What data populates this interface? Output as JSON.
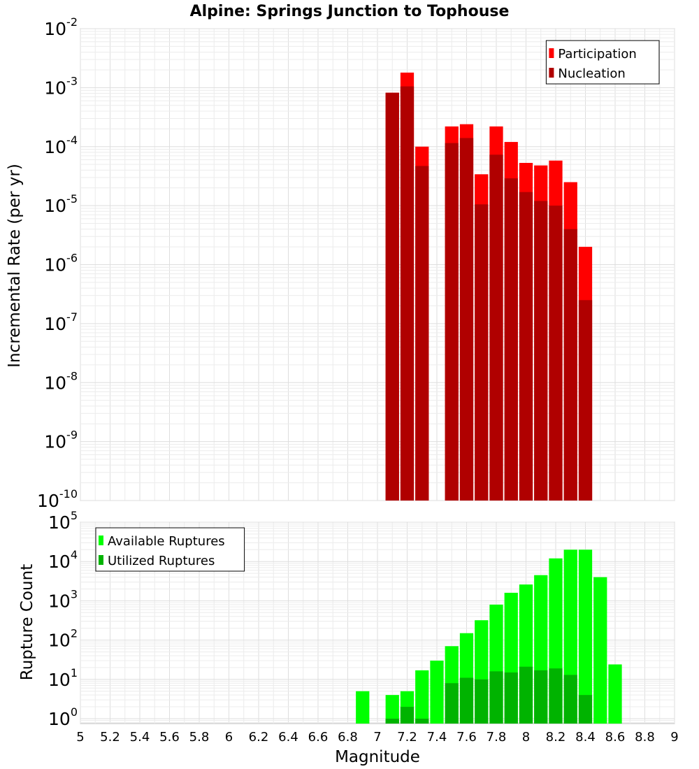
{
  "chart_data": [
    {
      "type": "bar",
      "title": "Alpine: Springs Junction to Tophouse",
      "xlabel": "",
      "ylabel": "Incremental Rate (per yr)",
      "yscale": "log",
      "ylim": [
        1e-10,
        0.01
      ],
      "xlim": [
        5,
        9
      ],
      "ytick_labels": [
        {
          "base": "10",
          "exp": "-10"
        },
        {
          "base": "10",
          "exp": "-9"
        },
        {
          "base": "10",
          "exp": "-8"
        },
        {
          "base": "10",
          "exp": "-7"
        },
        {
          "base": "10",
          "exp": "-6"
        },
        {
          "base": "10",
          "exp": "-5"
        },
        {
          "base": "10",
          "exp": "-4"
        },
        {
          "base": "10",
          "exp": "-3"
        },
        {
          "base": "10",
          "exp": "-2"
        }
      ],
      "grid": true,
      "legend_position": "top-right",
      "bin_width": 0.1,
      "x": [
        7.1,
        7.2,
        7.3,
        7.5,
        7.6,
        7.7,
        7.8,
        7.9,
        8.0,
        8.1,
        8.2,
        8.3,
        8.4
      ],
      "series": [
        {
          "name": "Participation",
          "color": "#ff0000",
          "values": [
            0.00082,
            0.0018,
            0.0001,
            0.00022,
            0.00024,
            3.4e-05,
            0.00022,
            0.00012,
            5.3e-05,
            4.8e-05,
            5.8e-05,
            2.5e-05,
            2e-06
          ]
        },
        {
          "name": "Nucleation",
          "color": "#b00000",
          "values": [
            0.00082,
            0.00105,
            4.7e-05,
            0.000115,
            0.00014,
            1.05e-05,
            7.3e-05,
            2.9e-05,
            1.7e-05,
            1.2e-05,
            1e-05,
            4e-06,
            2.5e-07
          ]
        }
      ]
    },
    {
      "type": "bar",
      "title": "",
      "xlabel": "Magnitude",
      "ylabel": "Rupture Count",
      "yscale": "log",
      "ylim": [
        0.75,
        100000.0
      ],
      "xlim": [
        5,
        9
      ],
      "ytick_labels": [
        {
          "base": "10",
          "exp": "0"
        },
        {
          "base": "10",
          "exp": "1"
        },
        {
          "base": "10",
          "exp": "2"
        },
        {
          "base": "10",
          "exp": "3"
        },
        {
          "base": "10",
          "exp": "4"
        },
        {
          "base": "10",
          "exp": "5"
        }
      ],
      "xtick_labels": [
        "5",
        "5.2",
        "5.4",
        "5.6",
        "5.8",
        "6",
        "6.2",
        "6.4",
        "6.6",
        "6.8",
        "7",
        "7.2",
        "7.4",
        "7.6",
        "7.8",
        "8",
        "8.2",
        "8.4",
        "8.6",
        "8.8",
        "9"
      ],
      "grid": true,
      "legend_position": "top-left",
      "bin_width": 0.1,
      "series": [
        {
          "name": "Available Ruptures",
          "color": "#00ff00",
          "x": [
            6.9,
            7.1,
            7.2,
            7.3,
            7.4,
            7.5,
            7.6,
            7.7,
            7.8,
            7.9,
            8.0,
            8.1,
            8.2,
            8.3,
            8.4,
            8.5,
            8.6
          ],
          "values": [
            5,
            4,
            5,
            17,
            30,
            70,
            150,
            320,
            800,
            1600,
            2600,
            4500,
            12000,
            20000,
            20000,
            4000,
            24
          ]
        },
        {
          "name": "Utilized Ruptures",
          "color": "#00b300",
          "x": [
            7.1,
            7.2,
            7.3,
            7.5,
            7.6,
            7.7,
            7.8,
            7.9,
            8.0,
            8.1,
            8.2,
            8.3,
            8.4
          ],
          "values": [
            1,
            2,
            1,
            8,
            11,
            10,
            16,
            15,
            21,
            17,
            19,
            13,
            4
          ]
        }
      ]
    }
  ]
}
